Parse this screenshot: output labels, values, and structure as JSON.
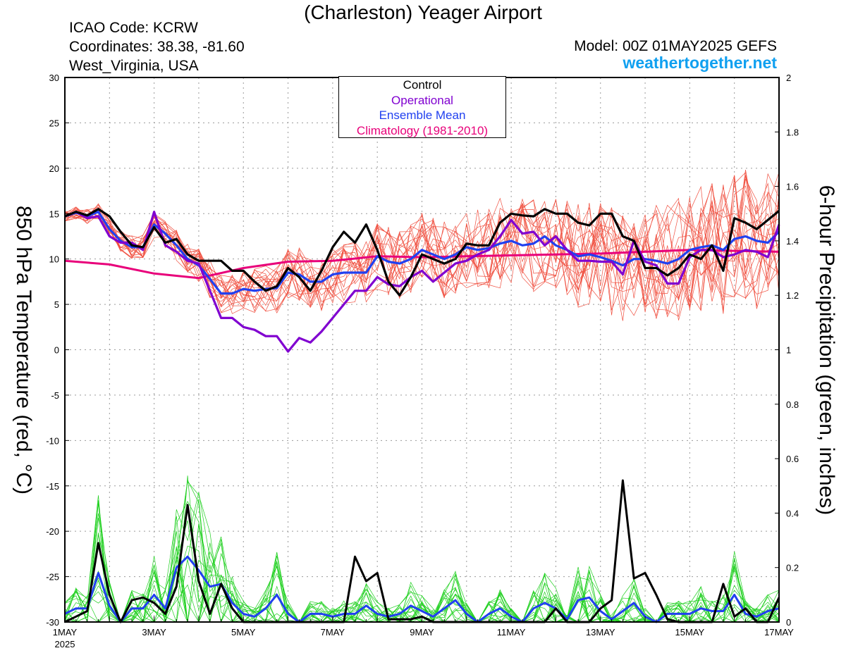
{
  "header": {
    "title": "(Charleston) Yeager Airport",
    "icao": "ICAO Code: KCRW",
    "coords": "Coordinates: 38.38, -81.60",
    "region": "West_Virginia, USA",
    "model": "Model: 00Z 01MAY2025 GEFS",
    "site": "weathertogether.net"
  },
  "chart_data": {
    "type": "line",
    "xlabel": "",
    "ylabel": "850 hPa Temperature (red, °C)",
    "y2label": "6-hour Precipitation (green, inches)",
    "x_unit": "days since 1MAY 00Z (forecast lead time, 6-hour steps)",
    "xlim": [
      0,
      16
    ],
    "ylim": [
      -30,
      30
    ],
    "y2lim": [
      0,
      2
    ],
    "grid": true,
    "legend_position": "top-center",
    "x_tick_labels": [
      "1MAY",
      "3MAY",
      "5MAY",
      "7MAY",
      "9MAY",
      "11MAY",
      "13MAY",
      "15MAY",
      "17MAY"
    ],
    "x_tick_values": [
      0,
      2,
      4,
      6,
      8,
      10,
      12,
      14,
      16
    ],
    "x_year_label": "2025",
    "y_ticks": [
      30,
      25,
      20,
      15,
      10,
      5,
      0,
      -5,
      -10,
      -15,
      -20,
      -25,
      -30
    ],
    "y2_ticks": [
      2,
      1.8,
      1.6,
      1.4,
      1.2,
      1,
      0.8,
      0.6,
      0.4,
      0.2,
      0
    ],
    "y2_tick_labels": [
      "2",
      "1.8",
      "1.6",
      "1.4",
      "1.2",
      "1",
      "0.8",
      "0.6",
      "0.4",
      "0.2",
      "0"
    ],
    "legend": [
      {
        "label": "Control",
        "color": "#000000"
      },
      {
        "label": "Operational",
        "color": "#8000d0"
      },
      {
        "label": "Ensemble Mean",
        "color": "#2040f0"
      },
      {
        "label": "Climatology (1981-2010)",
        "color": "#e8007a"
      }
    ],
    "series_colors": {
      "members_temp": "#f05040",
      "members_precip": "#20d020"
    },
    "temperature": {
      "control": [
        [
          0,
          14.7
        ],
        [
          0.25,
          15.2
        ],
        [
          0.5,
          14.8
        ],
        [
          0.75,
          15.5
        ],
        [
          1,
          14.7
        ],
        [
          1.25,
          13
        ],
        [
          1.5,
          11.5
        ],
        [
          1.75,
          11.3
        ],
        [
          2,
          13.5
        ],
        [
          2.25,
          11.8
        ],
        [
          2.5,
          12.2
        ],
        [
          2.75,
          10.5
        ],
        [
          3,
          9.8
        ],
        [
          3.25,
          9.8
        ],
        [
          3.5,
          9.8
        ],
        [
          3.75,
          8.7
        ],
        [
          4,
          8.7
        ],
        [
          4.25,
          7.5
        ],
        [
          4.5,
          6.5
        ],
        [
          4.75,
          7
        ],
        [
          5,
          9
        ],
        [
          5.25,
          8
        ],
        [
          5.5,
          6.5
        ],
        [
          5.75,
          8.7
        ],
        [
          6,
          11.3
        ],
        [
          6.25,
          13
        ],
        [
          6.5,
          11.8
        ],
        [
          6.75,
          13.8
        ],
        [
          7,
          11
        ],
        [
          7.25,
          7.5
        ],
        [
          7.5,
          6
        ],
        [
          7.75,
          8
        ],
        [
          8,
          10.5
        ],
        [
          8.25,
          10
        ],
        [
          8.5,
          9.5
        ],
        [
          8.75,
          10
        ],
        [
          9,
          11.7
        ],
        [
          9.25,
          11.5
        ],
        [
          9.5,
          11.5
        ],
        [
          9.75,
          14
        ],
        [
          10,
          15
        ],
        [
          10.25,
          14.8
        ],
        [
          10.5,
          14.7
        ],
        [
          10.75,
          15.5
        ],
        [
          11,
          15
        ],
        [
          11.25,
          15
        ],
        [
          11.5,
          14
        ],
        [
          11.75,
          13.7
        ],
        [
          12,
          15
        ],
        [
          12.25,
          15
        ],
        [
          12.5,
          12.5
        ],
        [
          12.75,
          12
        ],
        [
          13,
          9
        ],
        [
          13.25,
          9
        ],
        [
          13.5,
          8.2
        ],
        [
          13.75,
          9
        ],
        [
          14,
          10.5
        ],
        [
          14.25,
          10
        ],
        [
          14.5,
          11.5
        ],
        [
          14.75,
          8.7
        ],
        [
          15,
          14.5
        ],
        [
          15.25,
          14
        ],
        [
          15.5,
          13.3
        ],
        [
          15.75,
          14.3
        ],
        [
          16,
          15.3
        ]
      ],
      "operational": [
        [
          0,
          14.7
        ],
        [
          0.25,
          15.2
        ],
        [
          0.5,
          14.5
        ],
        [
          0.75,
          14.7
        ],
        [
          1,
          12.5
        ],
        [
          1.25,
          11.8
        ],
        [
          1.5,
          11.8
        ],
        [
          1.75,
          11
        ],
        [
          2,
          15.2
        ],
        [
          2.25,
          11.5
        ],
        [
          2.5,
          10.8
        ],
        [
          2.75,
          9.8
        ],
        [
          3,
          9.5
        ],
        [
          3.25,
          6.5
        ],
        [
          3.5,
          3.5
        ],
        [
          3.75,
          3.5
        ],
        [
          4,
          2.5
        ],
        [
          4.25,
          2.2
        ],
        [
          4.5,
          1.5
        ],
        [
          4.75,
          1.5
        ],
        [
          5,
          -0.2
        ],
        [
          5.25,
          1.3
        ],
        [
          5.5,
          0.8
        ],
        [
          5.75,
          2
        ],
        [
          6,
          3.5
        ],
        [
          6.25,
          5
        ],
        [
          6.5,
          6.5
        ],
        [
          6.75,
          6.5
        ],
        [
          7,
          8
        ],
        [
          7.25,
          7.2
        ],
        [
          7.5,
          7
        ],
        [
          7.75,
          8
        ],
        [
          8,
          8.7
        ],
        [
          8.25,
          7.5
        ],
        [
          8.5,
          8.5
        ],
        [
          8.75,
          9.5
        ],
        [
          9,
          9.8
        ],
        [
          9.25,
          10.5
        ],
        [
          9.5,
          11
        ],
        [
          9.75,
          12.5
        ],
        [
          10,
          14.3
        ],
        [
          10.25,
          12.8
        ],
        [
          10.5,
          13
        ],
        [
          10.75,
          11.5
        ],
        [
          11,
          12.5
        ],
        [
          11.25,
          11
        ],
        [
          11.5,
          9.8
        ],
        [
          11.75,
          9.8
        ],
        [
          12,
          9.7
        ],
        [
          12.25,
          9.7
        ],
        [
          12.5,
          8.3
        ],
        [
          12.75,
          12
        ],
        [
          13,
          9.7
        ],
        [
          13.25,
          9.3
        ],
        [
          13.5,
          7.3
        ],
        [
          13.75,
          7.3
        ],
        [
          14,
          10.2
        ],
        [
          14.25,
          11
        ],
        [
          14.5,
          11
        ],
        [
          14.75,
          10.2
        ],
        [
          15,
          10.5
        ],
        [
          15.25,
          11
        ],
        [
          15.5,
          10.8
        ],
        [
          15.75,
          10.2
        ],
        [
          16,
          13.8
        ]
      ],
      "ensemble_mean": [
        [
          0,
          14.7
        ],
        [
          0.25,
          15.1
        ],
        [
          0.5,
          14.7
        ],
        [
          0.75,
          15.2
        ],
        [
          1,
          13.3
        ],
        [
          1.25,
          12
        ],
        [
          1.5,
          11.3
        ],
        [
          1.75,
          11.3
        ],
        [
          2,
          13.8
        ],
        [
          2.25,
          12.8
        ],
        [
          2.5,
          11.5
        ],
        [
          2.75,
          10
        ],
        [
          3,
          9.3
        ],
        [
          3.25,
          7.8
        ],
        [
          3.5,
          6.2
        ],
        [
          3.75,
          6.2
        ],
        [
          4,
          6.7
        ],
        [
          4.25,
          6.5
        ],
        [
          4.5,
          6.7
        ],
        [
          4.75,
          6.8
        ],
        [
          5,
          8.5
        ],
        [
          5.25,
          8.3
        ],
        [
          5.5,
          7.5
        ],
        [
          5.75,
          7.5
        ],
        [
          6,
          8.3
        ],
        [
          6.25,
          8.5
        ],
        [
          6.5,
          8.5
        ],
        [
          6.75,
          8.5
        ],
        [
          7,
          10.3
        ],
        [
          7.25,
          9.7
        ],
        [
          7.5,
          9.5
        ],
        [
          7.75,
          10
        ],
        [
          8,
          11
        ],
        [
          8.25,
          10.5
        ],
        [
          8.5,
          10
        ],
        [
          8.75,
          10.5
        ],
        [
          9,
          11.3
        ],
        [
          9.25,
          11
        ],
        [
          9.5,
          11.2
        ],
        [
          9.75,
          11.7
        ],
        [
          10,
          12
        ],
        [
          10.25,
          11.5
        ],
        [
          10.5,
          11.7
        ],
        [
          10.75,
          12.5
        ],
        [
          11,
          11.5
        ],
        [
          11.25,
          11
        ],
        [
          11.5,
          10.3
        ],
        [
          11.75,
          10.5
        ],
        [
          12,
          10.2
        ],
        [
          12.25,
          9.8
        ],
        [
          12.5,
          9.3
        ],
        [
          12.75,
          10
        ],
        [
          13,
          10
        ],
        [
          13.25,
          9.8
        ],
        [
          13.5,
          9.5
        ],
        [
          13.75,
          10
        ],
        [
          14,
          11
        ],
        [
          14.25,
          11.3
        ],
        [
          14.5,
          11.5
        ],
        [
          14.75,
          11
        ],
        [
          15,
          12.2
        ],
        [
          15.25,
          12.5
        ],
        [
          15.5,
          12
        ],
        [
          15.75,
          11.8
        ],
        [
          16,
          13
        ]
      ],
      "climatology": [
        [
          0,
          9.8
        ],
        [
          1,
          9.4
        ],
        [
          2,
          8.4
        ],
        [
          3,
          7.9
        ],
        [
          4,
          9
        ],
        [
          5,
          9.7
        ],
        [
          6,
          9.8
        ],
        [
          7,
          10.3
        ],
        [
          8,
          10.2
        ],
        [
          9,
          10.3
        ],
        [
          10,
          10.4
        ],
        [
          11,
          10.5
        ],
        [
          12,
          10.6
        ],
        [
          13,
          10.8
        ],
        [
          14,
          11
        ],
        [
          15,
          10.9
        ],
        [
          16,
          10.8
        ]
      ]
    },
    "precipitation": {
      "control": [
        [
          0,
          0
        ],
        [
          0.25,
          0.02
        ],
        [
          0.5,
          0.04
        ],
        [
          0.75,
          0.29
        ],
        [
          1,
          0.1
        ],
        [
          1.25,
          0
        ],
        [
          1.5,
          0.08
        ],
        [
          1.75,
          0.09
        ],
        [
          2,
          0.07
        ],
        [
          2.25,
          0.03
        ],
        [
          2.5,
          0.13
        ],
        [
          2.75,
          0.43
        ],
        [
          3,
          0.15
        ],
        [
          3.25,
          0.03
        ],
        [
          3.5,
          0.14
        ],
        [
          3.75,
          0.05
        ],
        [
          4,
          0
        ],
        [
          4.25,
          0
        ],
        [
          4.5,
          0
        ],
        [
          4.75,
          0
        ],
        [
          5,
          0
        ],
        [
          5.25,
          0
        ],
        [
          5.5,
          0
        ],
        [
          5.75,
          0
        ],
        [
          6,
          0
        ],
        [
          6.25,
          0
        ],
        [
          6.5,
          0.24
        ],
        [
          6.75,
          0.15
        ],
        [
          7,
          0.18
        ],
        [
          7.25,
          0.01
        ],
        [
          7.5,
          0.01
        ],
        [
          7.75,
          0.01
        ],
        [
          8,
          0.02
        ],
        [
          8.25,
          0
        ],
        [
          8.5,
          0
        ],
        [
          8.75,
          0
        ],
        [
          9,
          0
        ],
        [
          9.25,
          0
        ],
        [
          9.5,
          0
        ],
        [
          9.75,
          0
        ],
        [
          10,
          0
        ],
        [
          10.25,
          0
        ],
        [
          10.5,
          0
        ],
        [
          10.75,
          0
        ],
        [
          11,
          0.05
        ],
        [
          11.25,
          0
        ],
        [
          11.5,
          0
        ],
        [
          11.75,
          0
        ],
        [
          12,
          0.05
        ],
        [
          12.25,
          0.08
        ],
        [
          12.5,
          0.52
        ],
        [
          12.75,
          0.16
        ],
        [
          13,
          0.18
        ],
        [
          13.25,
          0.1
        ],
        [
          13.5,
          0.01
        ],
        [
          13.75,
          0
        ],
        [
          14,
          0
        ],
        [
          14.25,
          0
        ],
        [
          14.5,
          0
        ],
        [
          14.75,
          0.14
        ],
        [
          15,
          0.02
        ],
        [
          15.25,
          0.05
        ],
        [
          15.5,
          0
        ],
        [
          15.75,
          0
        ],
        [
          16,
          0.09
        ]
      ],
      "ensemble_mean": [
        [
          0,
          0.03
        ],
        [
          0.25,
          0.05
        ],
        [
          0.5,
          0.05
        ],
        [
          0.75,
          0.18
        ],
        [
          1,
          0.06
        ],
        [
          1.25,
          0
        ],
        [
          1.5,
          0.05
        ],
        [
          1.75,
          0.05
        ],
        [
          2,
          0.1
        ],
        [
          2.25,
          0.05
        ],
        [
          2.5,
          0.2
        ],
        [
          2.75,
          0.24
        ],
        [
          3,
          0.19
        ],
        [
          3.25,
          0.13
        ],
        [
          3.5,
          0.14
        ],
        [
          3.75,
          0.07
        ],
        [
          4,
          0.03
        ],
        [
          4.25,
          0.02
        ],
        [
          4.5,
          0.05
        ],
        [
          4.75,
          0.1
        ],
        [
          5,
          0.03
        ],
        [
          5.25,
          0
        ],
        [
          5.5,
          0.03
        ],
        [
          5.75,
          0.03
        ],
        [
          6,
          0.02
        ],
        [
          6.25,
          0.03
        ],
        [
          6.5,
          0.03
        ],
        [
          6.75,
          0.06
        ],
        [
          7,
          0.03
        ],
        [
          7.25,
          0.02
        ],
        [
          7.5,
          0.03
        ],
        [
          7.75,
          0.06
        ],
        [
          8,
          0.04
        ],
        [
          8.25,
          0.02
        ],
        [
          8.5,
          0.05
        ],
        [
          8.75,
          0.08
        ],
        [
          9,
          0.03
        ],
        [
          9.25,
          0
        ],
        [
          9.5,
          0.03
        ],
        [
          9.75,
          0.05
        ],
        [
          10,
          0.02
        ],
        [
          10.25,
          0
        ],
        [
          10.5,
          0.05
        ],
        [
          10.75,
          0.07
        ],
        [
          11,
          0.05
        ],
        [
          11.25,
          0.01
        ],
        [
          11.5,
          0.08
        ],
        [
          11.75,
          0.09
        ],
        [
          12,
          0.04
        ],
        [
          12.25,
          0.01
        ],
        [
          12.5,
          0.04
        ],
        [
          12.75,
          0.07
        ],
        [
          13,
          0.02
        ],
        [
          13.25,
          0
        ],
        [
          13.5,
          0.03
        ],
        [
          13.75,
          0.03
        ],
        [
          14,
          0.03
        ],
        [
          14.25,
          0.05
        ],
        [
          14.5,
          0.04
        ],
        [
          14.75,
          0.04
        ],
        [
          15,
          0.1
        ],
        [
          15.25,
          0.03
        ],
        [
          15.5,
          0.02
        ],
        [
          15.75,
          0.04
        ],
        [
          16,
          0.05
        ]
      ]
    }
  }
}
